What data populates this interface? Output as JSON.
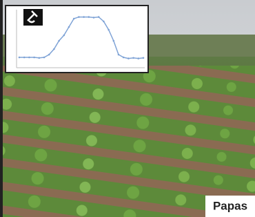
{
  "chart_data": {
    "type": "line",
    "color": "#7fa3d6",
    "values": [
      0.15,
      0.15,
      0.15,
      0.15,
      0.14,
      0.15,
      0.2,
      0.3,
      0.45,
      0.55,
      0.7,
      0.85,
      0.88,
      0.88,
      0.88,
      0.87,
      0.88,
      0.8,
      0.65,
      0.45,
      0.2,
      0.15,
      0.13,
      0.14,
      0.13,
      0.14
    ],
    "ylim": [
      0,
      1
    ]
  },
  "label": "Papas"
}
